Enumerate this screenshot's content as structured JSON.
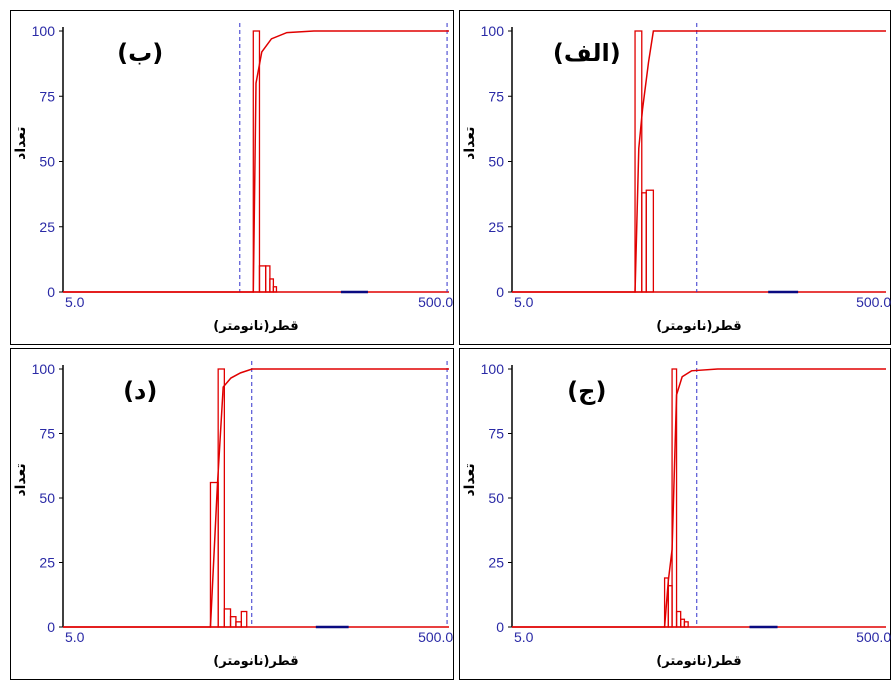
{
  "colors": {
    "data": "#e00000",
    "axis_text": "#2a2aa6",
    "dashed": "#3333cc",
    "marker": "#0a0a80"
  },
  "chart_data": [
    {
      "type": "bar",
      "panel_label": "(ب)",
      "xlabel": "قطر(نانومتر)",
      "ylabel": "تعداد",
      "xlim_labels": [
        "5.0",
        "500.0"
      ],
      "ylim": [
        0,
        100
      ],
      "yticks": [
        0,
        25,
        50,
        75,
        100
      ],
      "bars": [
        {
          "x": 0.493,
          "w": 0.016,
          "y": 100
        },
        {
          "x": 0.509,
          "w": 0.016,
          "y": 10
        },
        {
          "x": 0.525,
          "w": 0.011,
          "y": 10
        },
        {
          "x": 0.536,
          "w": 0.009,
          "y": 5
        },
        {
          "x": 0.545,
          "w": 0.008,
          "y": 2
        }
      ],
      "cumulative": [
        [
          0,
          0
        ],
        [
          0.493,
          0
        ],
        [
          0.5,
          80
        ],
        [
          0.515,
          92
        ],
        [
          0.54,
          97
        ],
        [
          0.58,
          99.4
        ],
        [
          0.65,
          100
        ],
        [
          1,
          100
        ]
      ],
      "dashed_x": [
        0.458,
        0.995
      ],
      "marker": {
        "x1": 0.72,
        "x2": 0.79
      }
    },
    {
      "type": "bar",
      "panel_label": "(الف)",
      "xlabel": "قطر(نانومتر)",
      "ylabel": "تعداد",
      "xlim_labels": [
        "5.0",
        "500.0"
      ],
      "ylim": [
        0,
        100
      ],
      "yticks": [
        0,
        25,
        50,
        75,
        100
      ],
      "bars": [
        {
          "x": 0.329,
          "w": 0.018,
          "y": 100
        },
        {
          "x": 0.347,
          "w": 0.012,
          "y": 38
        },
        {
          "x": 0.359,
          "w": 0.019,
          "y": 39
        }
      ],
      "cumulative": [
        [
          0,
          0
        ],
        [
          0.329,
          0
        ],
        [
          0.339,
          55
        ],
        [
          0.349,
          70
        ],
        [
          0.365,
          88
        ],
        [
          0.378,
          100
        ],
        [
          1,
          100
        ]
      ],
      "dashed_x": [
        0.494
      ],
      "marker": {
        "x1": 0.685,
        "x2": 0.765
      }
    },
    {
      "type": "bar",
      "panel_label": "(د)",
      "xlabel": "قطر(نانومتر)",
      "ylabel": "تعداد",
      "xlim_labels": [
        "5.0",
        "500.0"
      ],
      "ylim": [
        0,
        100
      ],
      "yticks": [
        0,
        25,
        50,
        75,
        100
      ],
      "bars": [
        {
          "x": 0.382,
          "w": 0.02,
          "y": 56
        },
        {
          "x": 0.402,
          "w": 0.016,
          "y": 100
        },
        {
          "x": 0.418,
          "w": 0.016,
          "y": 7
        },
        {
          "x": 0.434,
          "w": 0.014,
          "y": 4
        },
        {
          "x": 0.448,
          "w": 0.014,
          "y": 2
        },
        {
          "x": 0.462,
          "w": 0.014,
          "y": 6
        }
      ],
      "cumulative": [
        [
          0,
          0
        ],
        [
          0.382,
          0
        ],
        [
          0.4,
          55
        ],
        [
          0.415,
          93
        ],
        [
          0.435,
          96.5
        ],
        [
          0.46,
          98.5
        ],
        [
          0.49,
          100
        ],
        [
          1,
          100
        ]
      ],
      "dashed_x": [
        0.489,
        0.995
      ],
      "marker": {
        "x1": 0.655,
        "x2": 0.74
      }
    },
    {
      "type": "bar",
      "panel_label": "(ج)",
      "xlabel": "قطر(نانومتر)",
      "ylabel": "تعداد",
      "xlim_labels": [
        "5.0",
        "500.0"
      ],
      "ylim": [
        0,
        100
      ],
      "yticks": [
        0,
        25,
        50,
        75,
        100
      ],
      "bars": [
        {
          "x": 0.408,
          "w": 0.01,
          "y": 19
        },
        {
          "x": 0.418,
          "w": 0.01,
          "y": 16
        },
        {
          "x": 0.428,
          "w": 0.012,
          "y": 100
        },
        {
          "x": 0.44,
          "w": 0.011,
          "y": 6
        },
        {
          "x": 0.451,
          "w": 0.01,
          "y": 3
        },
        {
          "x": 0.461,
          "w": 0.01,
          "y": 2
        }
      ],
      "cumulative": [
        [
          0,
          0
        ],
        [
          0.408,
          0
        ],
        [
          0.418,
          18
        ],
        [
          0.428,
          30
        ],
        [
          0.44,
          90
        ],
        [
          0.455,
          97
        ],
        [
          0.48,
          99.3
        ],
        [
          0.55,
          100
        ],
        [
          1,
          100
        ]
      ],
      "dashed_x": [
        0.494
      ],
      "marker": {
        "x1": 0.635,
        "x2": 0.71
      }
    }
  ]
}
